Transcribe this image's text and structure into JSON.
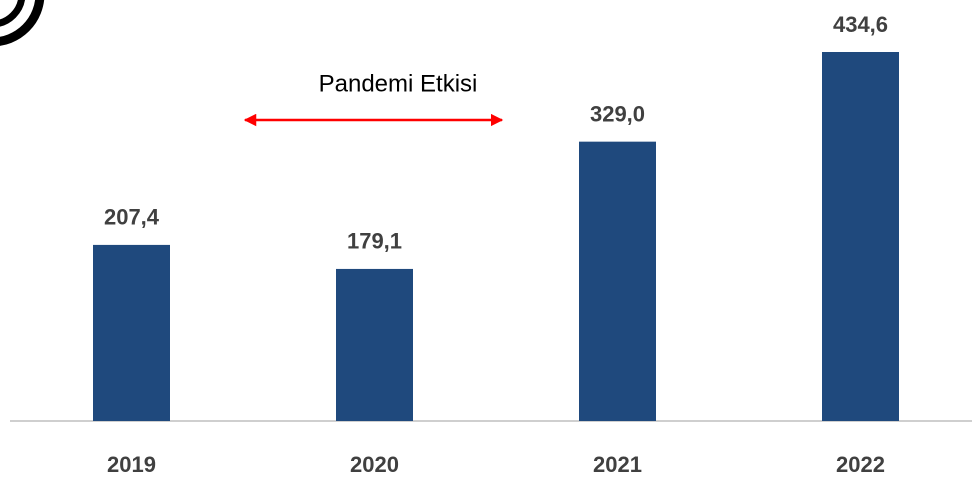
{
  "chart_data": {
    "type": "bar",
    "categories": [
      "2019",
      "2020",
      "2021",
      "2022"
    ],
    "values": [
      207.4,
      179.1,
      329.0,
      434.6
    ],
    "value_labels": [
      "207,4",
      "179,1",
      "329,0",
      "434,6"
    ],
    "color": "#1f497d",
    "annotation": "Pandemi Etkisi",
    "annotation_color": "#ff0000"
  }
}
